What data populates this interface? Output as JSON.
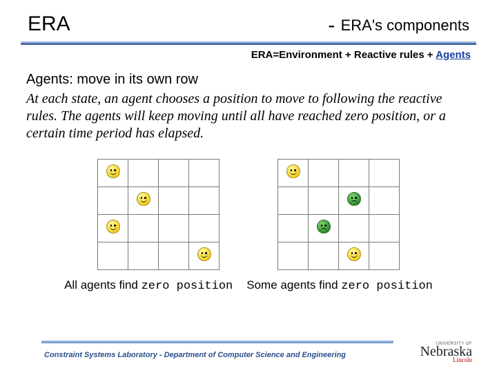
{
  "header": {
    "left": "ERA",
    "right_prefix": "- ",
    "right_text": "ERA's components"
  },
  "subhead": {
    "prefix": "ERA=Environment + Reactive rules + ",
    "agents": "Agents"
  },
  "body": {
    "line1_label": "Agents:",
    "line1_rest": " move in its own row",
    "desc": "At each state, an agent chooses a position to move to following the reactive rules. The agents will keep moving until all have reached zero position, or a certain time period has elapsed."
  },
  "grids": {
    "rows": 4,
    "cols": 4,
    "cell_size": {
      "w": 44,
      "h": 40
    },
    "border_color": "#7a7a7a",
    "face_colors": {
      "yellow": "#f5d021",
      "green": "#2f8a2b"
    },
    "left": {
      "agents": [
        {
          "row": 0,
          "col": 0,
          "mood": "yellow"
        },
        {
          "row": 1,
          "col": 1,
          "mood": "yellow"
        },
        {
          "row": 2,
          "col": 0,
          "mood": "yellow"
        },
        {
          "row": 3,
          "col": 3,
          "mood": "yellow"
        }
      ]
    },
    "right": {
      "agents": [
        {
          "row": 0,
          "col": 0,
          "mood": "yellow"
        },
        {
          "row": 1,
          "col": 2,
          "mood": "green"
        },
        {
          "row": 2,
          "col": 1,
          "mood": "green"
        },
        {
          "row": 3,
          "col": 2,
          "mood": "yellow"
        }
      ]
    }
  },
  "captions": {
    "left_a": "All agents find ",
    "left_b": "zero position",
    "right_a": "Some agents find ",
    "right_b": "zero position"
  },
  "footer": {
    "text": "Constraint Systems Laboratory - Department of Computer Science and Engineering",
    "logo_top": "UNIVERSITY OF",
    "logo_main": "Nebraska",
    "logo_sub": "Lincoln"
  },
  "colors": {
    "divider_top": "#9bb9e0",
    "divider_bottom": "#3b5f9c",
    "link": "#1a3ea0",
    "footer_text": "#2a4e8a",
    "logo_red": "#b30000"
  }
}
